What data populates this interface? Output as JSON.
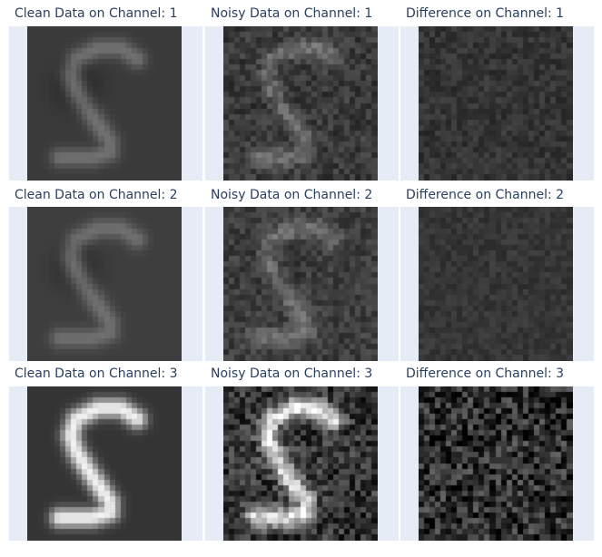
{
  "figure": {
    "panels": [
      {
        "title": "Clean Data on Channel: 1",
        "channel": 1,
        "kind": "clean"
      },
      {
        "title": "Noisy Data on Channel: 1",
        "channel": 1,
        "kind": "noisy"
      },
      {
        "title": "Difference on Channel: 1",
        "channel": 1,
        "kind": "difference"
      },
      {
        "title": "Clean Data on Channel: 2",
        "channel": 2,
        "kind": "clean"
      },
      {
        "title": "Noisy Data on Channel: 2",
        "channel": 2,
        "kind": "noisy"
      },
      {
        "title": "Difference on Channel: 2",
        "channel": 2,
        "kind": "difference"
      },
      {
        "title": "Clean Data on Channel: 3",
        "channel": 3,
        "kind": "clean"
      },
      {
        "title": "Noisy Data on Channel: 3",
        "channel": 3,
        "kind": "noisy"
      },
      {
        "title": "Difference on Channel: 3",
        "channel": 3,
        "kind": "difference"
      }
    ],
    "colors": {
      "background": "#ffffff",
      "panel_background": "#e5ecf6",
      "title_text": "#2a3f5f",
      "image_dark": "#3a3a3a",
      "image_light": "#f0f0f0"
    }
  }
}
